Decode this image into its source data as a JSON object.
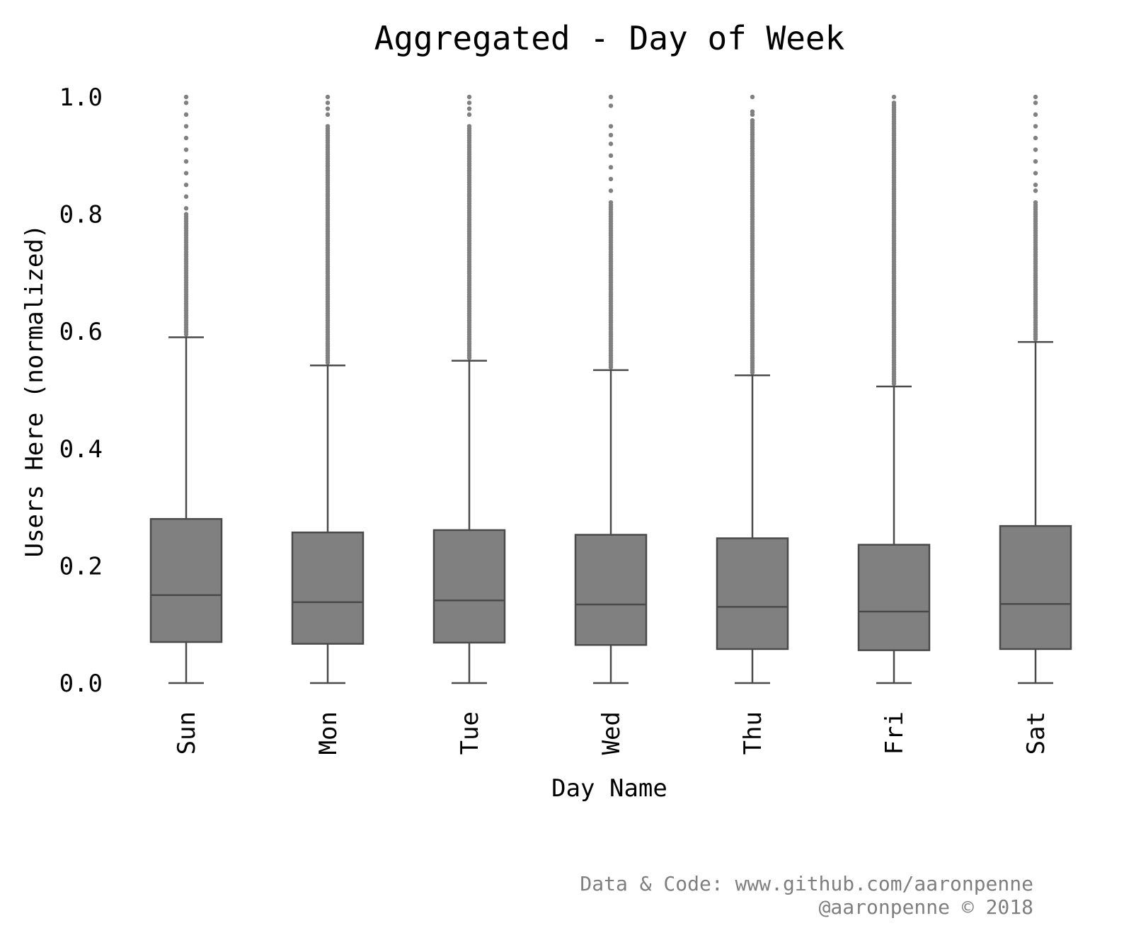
{
  "chart_data": {
    "type": "box",
    "title": "Aggregated - Day of Week",
    "xlabel": "Day Name",
    "ylabel": "Users Here (normalized)",
    "ylim": [
      0.0,
      1.0
    ],
    "yticks": [
      "0.0",
      "0.2",
      "0.4",
      "0.6",
      "0.8",
      "1.0"
    ],
    "grid": false,
    "box_color": "#808080",
    "line_color": "#4a4a4a",
    "outlier_color": "#808080",
    "categories": [
      "Sun",
      "Mon",
      "Tue",
      "Wed",
      "Thu",
      "Fri",
      "Sat"
    ],
    "boxes": [
      {
        "category": "Sun",
        "whisker_low": 0.0,
        "q1": 0.07,
        "median": 0.15,
        "q3": 0.28,
        "whisker_high": 0.59
      },
      {
        "category": "Mon",
        "whisker_low": 0.0,
        "q1": 0.067,
        "median": 0.138,
        "q3": 0.257,
        "whisker_high": 0.542
      },
      {
        "category": "Tue",
        "whisker_low": 0.0,
        "q1": 0.069,
        "median": 0.141,
        "q3": 0.261,
        "whisker_high": 0.55
      },
      {
        "category": "Wed",
        "whisker_low": 0.0,
        "q1": 0.065,
        "median": 0.134,
        "q3": 0.253,
        "whisker_high": 0.534
      },
      {
        "category": "Thu",
        "whisker_low": 0.0,
        "q1": 0.058,
        "median": 0.13,
        "q3": 0.247,
        "whisker_high": 0.525
      },
      {
        "category": "Fri",
        "whisker_low": 0.0,
        "q1": 0.056,
        "median": 0.122,
        "q3": 0.236,
        "whisker_high": 0.506
      },
      {
        "category": "Sat",
        "whisker_low": 0.0,
        "q1": 0.058,
        "median": 0.135,
        "q3": 0.268,
        "whisker_high": 0.582
      }
    ],
    "outliers": [
      {
        "category": "Sun",
        "dense_max": 0.8,
        "sparse": [
          1.0,
          0.99,
          0.97,
          0.95,
          0.93,
          0.91,
          0.89,
          0.87,
          0.85,
          0.83,
          0.81
        ]
      },
      {
        "category": "Mon",
        "dense_max": 0.95,
        "sparse": [
          1.0,
          0.99,
          0.98,
          0.97
        ]
      },
      {
        "category": "Tue",
        "dense_max": 0.95,
        "sparse": [
          1.0,
          0.99,
          0.98,
          0.97
        ]
      },
      {
        "category": "Wed",
        "dense_max": 0.82,
        "sparse": [
          1.0,
          0.985,
          0.95,
          0.935,
          0.92,
          0.9,
          0.88,
          0.86,
          0.84
        ]
      },
      {
        "category": "Thu",
        "dense_max": 0.96,
        "sparse": [
          1.0,
          0.975,
          0.97
        ]
      },
      {
        "category": "Fri",
        "dense_max": 0.99,
        "sparse": [
          1.0
        ]
      },
      {
        "category": "Sat",
        "dense_max": 0.82,
        "sparse": [
          1.0,
          0.99,
          0.97,
          0.95,
          0.93,
          0.91,
          0.89,
          0.87,
          0.85,
          0.84
        ]
      }
    ]
  },
  "credits": {
    "line1": "Data & Code: www.github.com/aaronpenne",
    "line2": "@aaronpenne © 2018"
  }
}
